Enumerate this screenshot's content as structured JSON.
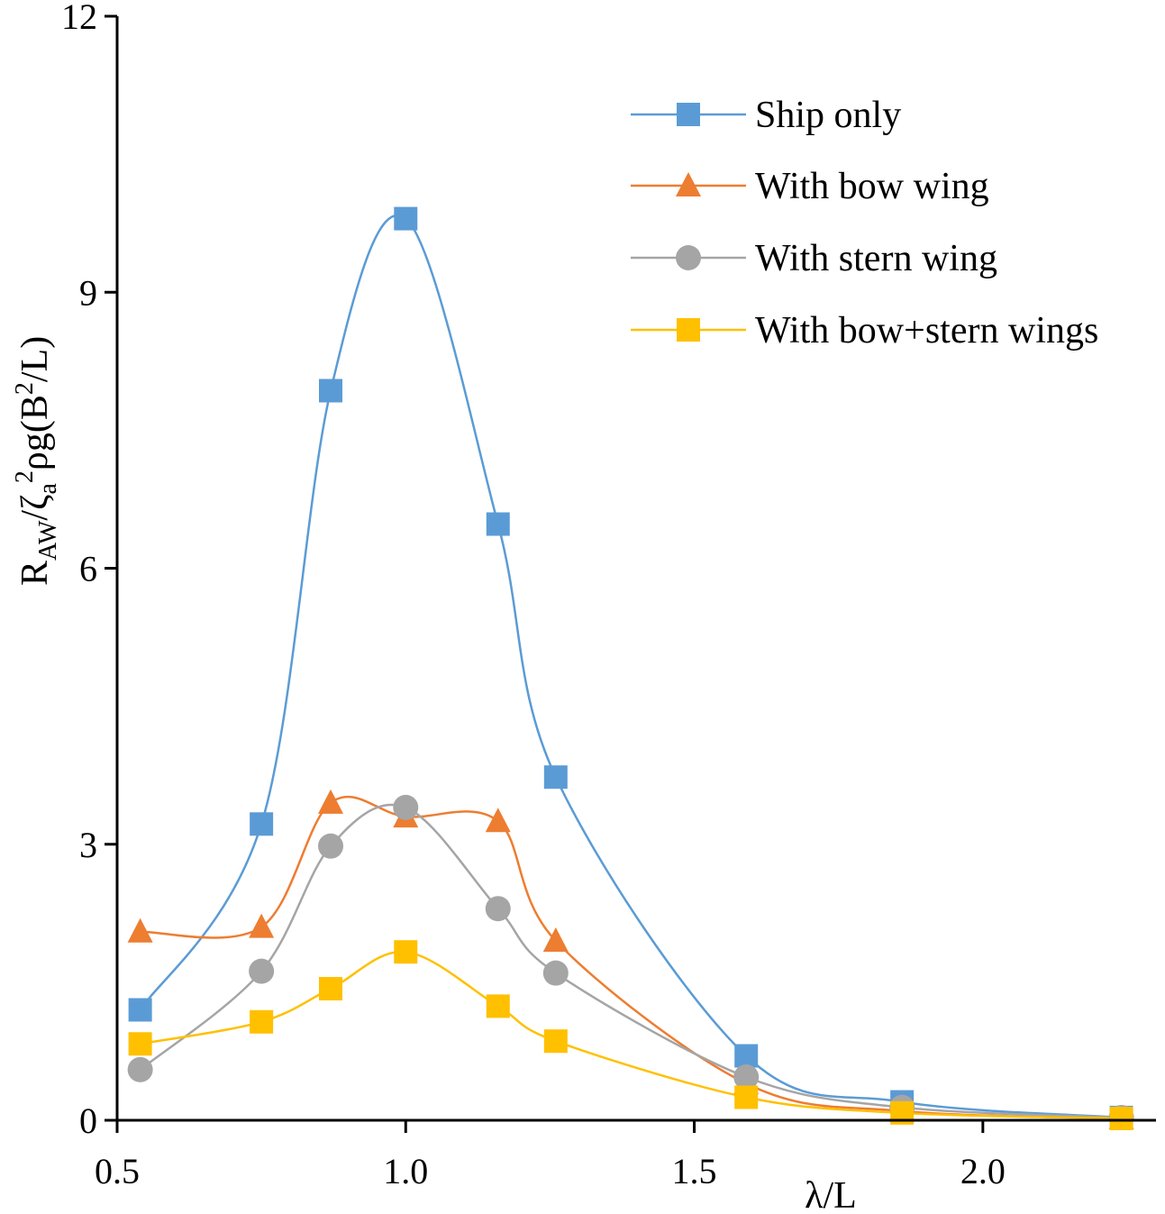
{
  "chart_data": {
    "type": "line",
    "xlabel": "λ/L",
    "ylabel": {
      "base": "R",
      "sub1": "AW",
      "mid1": "/ζ",
      "sub2": "a",
      "sup1": "2",
      "mid2": "ρg(B",
      "sup2": "2",
      "end": "/L)"
    },
    "xlim": [
      0.5,
      2.3
    ],
    "ylim": [
      0,
      12
    ],
    "xticks": [
      0.5,
      1.0,
      1.5,
      2.0
    ],
    "xtick_labels": [
      "0.5",
      "1.0",
      "1.5",
      "2.0"
    ],
    "yticks": [
      0,
      3,
      6,
      9,
      12
    ],
    "ytick_labels": [
      "0",
      "3",
      "6",
      "9",
      "12"
    ],
    "grid": false,
    "legend_position": "top-right",
    "series": [
      {
        "name": "Ship only",
        "color": "#5b9bd5",
        "marker": "square",
        "x": [
          0.54,
          0.75,
          0.87,
          1.0,
          1.16,
          1.26,
          1.59,
          1.86,
          2.24
        ],
        "y": [
          1.2,
          3.22,
          7.93,
          9.8,
          6.48,
          3.73,
          0.7,
          0.2,
          0.03
        ]
      },
      {
        "name": "With bow wing",
        "color": "#ed7d31",
        "marker": "triangle",
        "x": [
          0.54,
          0.75,
          0.87,
          1.0,
          1.16,
          1.26,
          1.59,
          1.86,
          2.24
        ],
        "y": [
          2.05,
          2.1,
          3.45,
          3.3,
          3.25,
          1.95,
          0.4,
          0.1,
          0.02
        ]
      },
      {
        "name": "With stern wing",
        "color": "#a5a5a5",
        "marker": "circle",
        "x": [
          0.54,
          0.75,
          0.87,
          1.0,
          1.16,
          1.26,
          1.59,
          1.86,
          2.24
        ],
        "y": [
          0.55,
          1.62,
          2.98,
          3.4,
          2.3,
          1.6,
          0.47,
          0.14,
          0.03
        ]
      },
      {
        "name": "With bow+stern wings",
        "color": "#ffc000",
        "marker": "square",
        "x": [
          0.54,
          0.75,
          0.87,
          1.0,
          1.16,
          1.26,
          1.59,
          1.86,
          2.24
        ],
        "y": [
          0.83,
          1.07,
          1.43,
          1.83,
          1.24,
          0.86,
          0.25,
          0.08,
          0.02
        ]
      }
    ]
  }
}
